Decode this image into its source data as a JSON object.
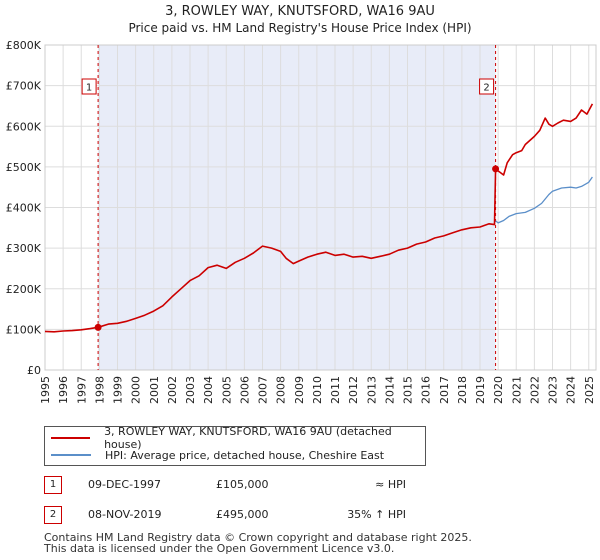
{
  "chart_data": {
    "type": "line",
    "title": "3, ROWLEY WAY, KNUTSFORD, WA16 9AU",
    "subtitle": "Price paid vs. HM Land Registry's House Price Index (HPI)",
    "x_range": [
      1995.0,
      2025.4
    ],
    "ylim": [
      0,
      800000
    ],
    "y_ticks": [
      0,
      100000,
      200000,
      300000,
      400000,
      500000,
      600000,
      700000,
      800000
    ],
    "y_tick_labels": [
      "£0",
      "£100K",
      "£200K",
      "£300K",
      "£400K",
      "£500K",
      "£600K",
      "£700K",
      "£800K"
    ],
    "x_ticks": [
      "1995",
      "1996",
      "1997",
      "1998",
      "1999",
      "2000",
      "2001",
      "2002",
      "2003",
      "2004",
      "2005",
      "2006",
      "2007",
      "2008",
      "2009",
      "2010",
      "2011",
      "2012",
      "2013",
      "2014",
      "2015",
      "2016",
      "2017",
      "2018",
      "2019",
      "2020",
      "2021",
      "2022",
      "2023",
      "2024",
      "2025"
    ],
    "grid": true,
    "shaded_span": [
      1997.93,
      2019.86
    ],
    "series": [
      {
        "name": "3, ROWLEY WAY, KNUTSFORD, WA16 9AU (detached house)",
        "color": "#cc0000",
        "x": [
          1995.0,
          1995.5,
          1996.0,
          1996.5,
          1997.0,
          1997.5,
          1997.93,
          1998.5,
          1999.0,
          1999.5,
          2000.0,
          2000.5,
          2001.0,
          2001.5,
          2002.0,
          2002.5,
          2003.0,
          2003.5,
          2004.0,
          2004.5,
          2005.0,
          2005.5,
          2006.0,
          2006.5,
          2007.0,
          2007.5,
          2008.0,
          2008.3,
          2008.7,
          2009.0,
          2009.5,
          2010.0,
          2010.5,
          2011.0,
          2011.5,
          2012.0,
          2012.5,
          2013.0,
          2013.5,
          2014.0,
          2014.5,
          2015.0,
          2015.5,
          2016.0,
          2016.5,
          2017.0,
          2017.5,
          2018.0,
          2018.5,
          2019.0,
          2019.5,
          2019.8,
          2019.86,
          2020.0,
          2020.3,
          2020.5,
          2020.8,
          2021.0,
          2021.3,
          2021.5,
          2022.0,
          2022.3,
          2022.6,
          2022.8,
          2023.0,
          2023.3,
          2023.6,
          2024.0,
          2024.3,
          2024.6,
          2024.9,
          2025.2
        ],
        "y": [
          95000,
          94000,
          96000,
          97000,
          99000,
          102000,
          105000,
          113000,
          115000,
          120000,
          127000,
          135000,
          145000,
          158000,
          180000,
          200000,
          220000,
          232000,
          252000,
          258000,
          250000,
          265000,
          275000,
          288000,
          305000,
          300000,
          292000,
          275000,
          262000,
          268000,
          278000,
          285000,
          290000,
          282000,
          285000,
          278000,
          280000,
          275000,
          280000,
          285000,
          295000,
          300000,
          310000,
          315000,
          325000,
          330000,
          338000,
          345000,
          350000,
          352000,
          360000,
          358000,
          495000,
          490000,
          480000,
          510000,
          530000,
          535000,
          540000,
          555000,
          575000,
          590000,
          620000,
          605000,
          600000,
          608000,
          615000,
          612000,
          620000,
          640000,
          630000,
          655000
        ]
      },
      {
        "name": "HPI: Average price, detached house, Cheshire East",
        "color": "#5b8fc9",
        "x": [
          2019.86,
          2020.0,
          2020.3,
          2020.6,
          2021.0,
          2021.5,
          2022.0,
          2022.4,
          2022.8,
          2023.0,
          2023.5,
          2024.0,
          2024.3,
          2024.6,
          2025.0,
          2025.2
        ],
        "y": [
          367000,
          362000,
          368000,
          378000,
          385000,
          388000,
          398000,
          410000,
          432000,
          440000,
          448000,
          450000,
          448000,
          452000,
          462000,
          475000
        ]
      }
    ],
    "annotations": [
      {
        "label": "1",
        "x": 1997.93,
        "y": 105000
      },
      {
        "label": "2",
        "x": 2019.86,
        "y": 495000
      }
    ]
  },
  "legend": {
    "items": [
      {
        "label": "3, ROWLEY WAY, KNUTSFORD, WA16 9AU (detached house)",
        "color": "#cc0000"
      },
      {
        "label": "HPI: Average price, detached house, Cheshire East",
        "color": "#5b8fc9"
      }
    ]
  },
  "sales": [
    {
      "num": "1",
      "date": "09-DEC-1997",
      "price": "£105,000",
      "hpi": "≈ HPI"
    },
    {
      "num": "2",
      "date": "08-NOV-2019",
      "price": "£495,000",
      "hpi": "35% ↑ HPI"
    }
  ],
  "footer": {
    "line1": "Contains HM Land Registry data © Crown copyright and database right 2025.",
    "line2": "This data is licensed under the Open Government Licence v3.0."
  }
}
